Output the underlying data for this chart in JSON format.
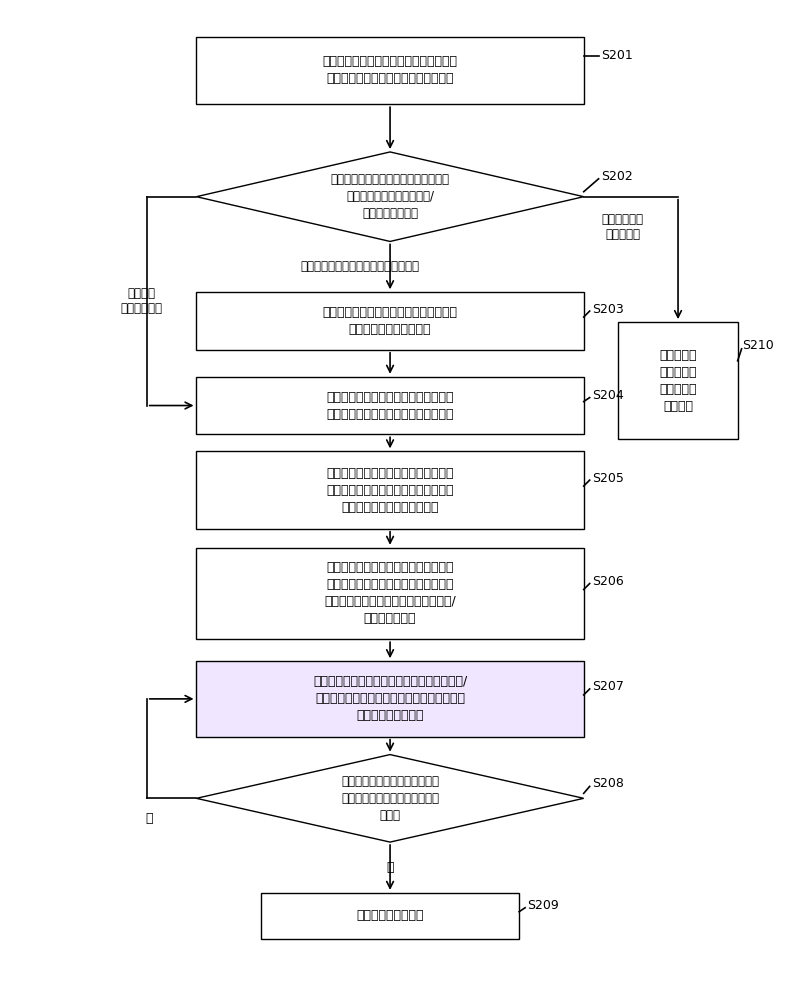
{
  "bg_color": "#ffffff",
  "box_border_color": "#000000",
  "highlight_fill": "#f0e6ff",
  "arrow_color": "#000000",
  "text_color": "#000000",
  "nodes": {
    "S201": {
      "text": "当用户终端需要转发接收回来的目标短信\n时，记录所述目标短信的原发送方号码",
      "highlight": false
    },
    "S202": {
      "text": "检测将要接收所述目标短信的收信人中\n是否包含有原发送方号码和/\n或其他收信人号码",
      "highlight": false
    },
    "S203": {
      "text": "删除所述原发送方号码，并将所述目标短\n信转发到其他收信人号码",
      "highlight": false
    },
    "S204": {
      "text": "根据原发送方号码建立一个短信编辑窗\n口，以供用户输入和发送新的短信内容",
      "highlight": false
    },
    "S205": {
      "text": "若检测到用户放弃在短信编辑窗口中输\n入新的短信内容，则将原发送方号码保\n存在一个新建的临时号码组中",
      "highlight": false
    },
    "S206": {
      "text": "当用户终端再次发送新短信时，提示用\n户是否需要将再次发送的新短信发送给\n保存在临时号码组中的原发送方号码和/\n或其他临时号码",
      "highlight": false
    },
    "S207": {
      "text": "当再次发送的新短信已发送给原发送方号码和/\n或其他临时号码后，将已发送过新短信的号码\n从临时号码组中删除",
      "highlight": true
    },
    "S208": {
      "text": "检测临时号码组中保存的原发送\n方号码和其他临时号码是否被全\n部删除",
      "highlight": false
    },
    "S209": {
      "text": "删除所述临时号码组",
      "highlight": false
    },
    "S210": {
      "text": "直接将所述\n目标短信转\n发到其他收\n信人号码",
      "highlight": false
    }
  },
  "labels": {
    "below_S202_left": "包含有原发送方号码和其他收信人号码",
    "right_S202": "仅包含有其他\n收信人号码",
    "left_S202": "仅包含有\n原发送方号码",
    "below_S208_yes": "是",
    "left_S208_no": "否"
  }
}
